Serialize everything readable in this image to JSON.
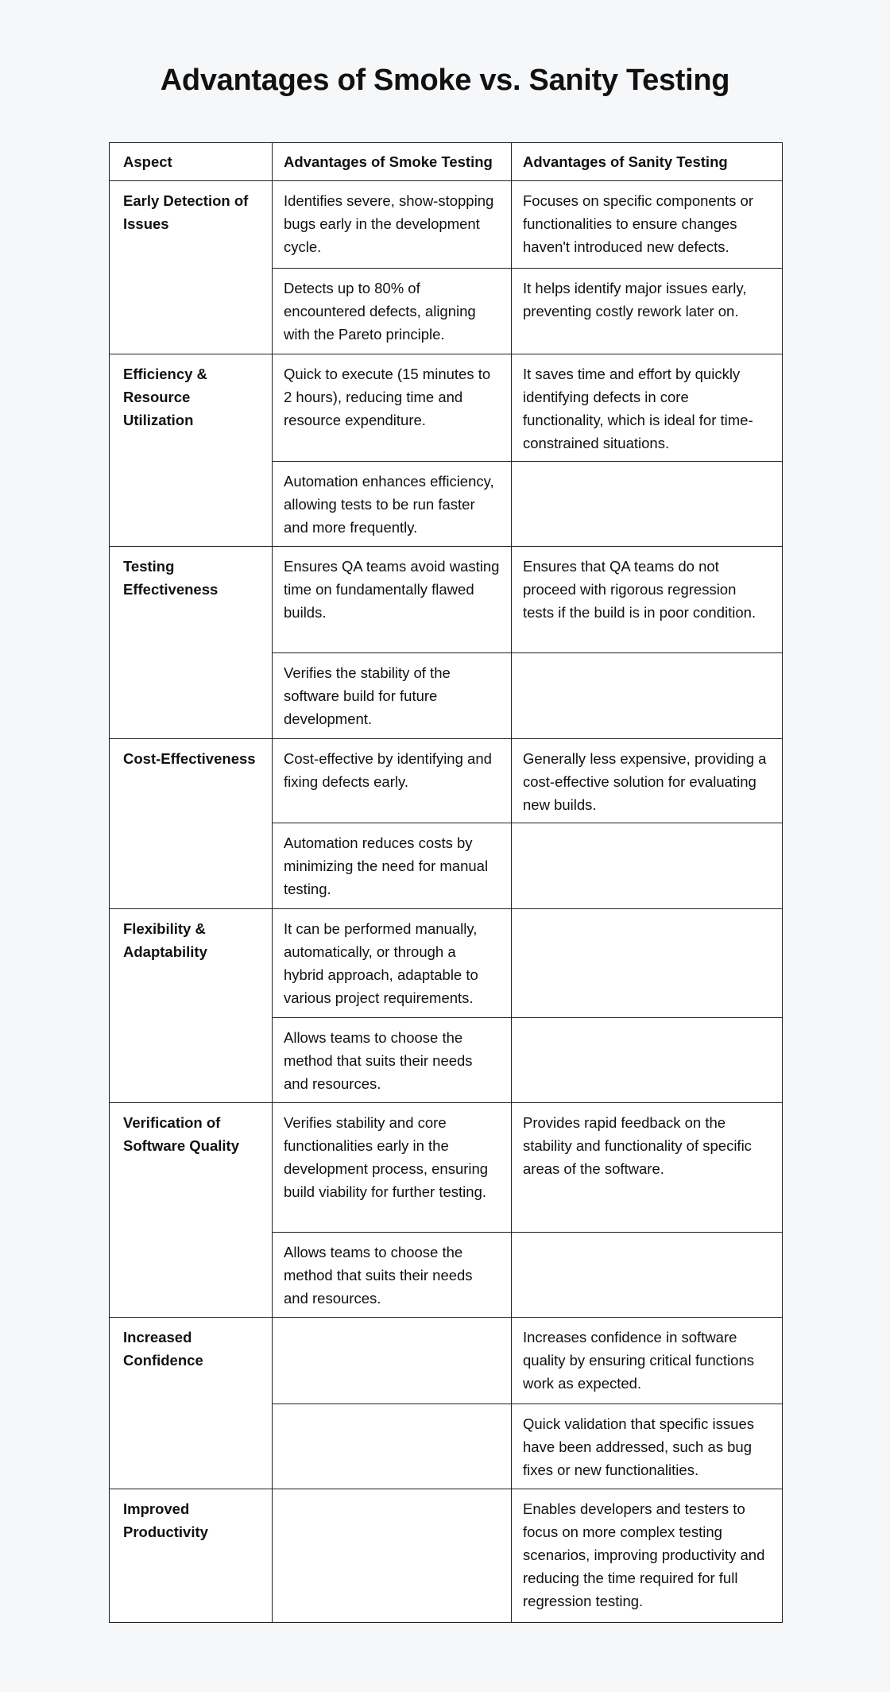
{
  "title": "Advantages of Smoke vs. Sanity Testing",
  "table": {
    "headers": [
      "Aspect",
      "Advantages of Smoke Testing",
      "Advantages of Sanity Testing"
    ],
    "groups": [
      {
        "aspect": "Early Detection of Issues",
        "rows": [
          {
            "smoke": "Identifies severe, show-stopping bugs early in the development cycle.",
            "sanity": "Focuses on specific components or functionalities to ensure changes haven't introduced new defects."
          },
          {
            "smoke": "Detects up to 80% of encountered defects, aligning with the Pareto principle.",
            "sanity": "It helps identify major issues early, preventing costly rework later on."
          }
        ]
      },
      {
        "aspect": "Efficiency & Resource Utilization",
        "rows": [
          {
            "smoke": "Quick to execute (15 minutes to 2 hours), reducing time and resource expenditure.",
            "sanity": "It saves time and effort by quickly identifying defects in core functionality, which is ideal for time-constrained situations."
          },
          {
            "smoke": "Automation enhances efficiency, allowing tests to be run faster and more frequently.",
            "sanity": ""
          }
        ]
      },
      {
        "aspect": "Testing Effectiveness",
        "rows": [
          {
            "smoke": "Ensures QA teams avoid wasting time on fundamentally flawed builds.",
            "sanity": "Ensures that QA teams do not proceed with rigorous regression tests if the build is in poor condition."
          },
          {
            "smoke": "Verifies the stability of the software build for future development.",
            "sanity": ""
          }
        ]
      },
      {
        "aspect": "Cost-Effectiveness",
        "rows": [
          {
            "smoke": "Cost-effective by identifying and fixing defects early.",
            "sanity": "Generally less expensive, providing a cost-effective solution for evaluating new builds."
          },
          {
            "smoke": "Automation reduces costs by minimizing the need for manual testing.",
            "sanity": ""
          }
        ]
      },
      {
        "aspect": "Flexibility & Adaptability",
        "rows": [
          {
            "smoke": "It can be performed manually, automatically, or through a hybrid approach, adaptable to various project requirements.",
            "sanity": ""
          },
          {
            "smoke": "Allows teams to choose the method that suits their needs and resources.",
            "sanity": ""
          }
        ]
      },
      {
        "aspect": "Verification of Software Quality",
        "rows": [
          {
            "smoke": "Verifies stability and core functionalities early in the development process, ensuring build viability for further testing.",
            "sanity": "Provides rapid feedback on the stability and functionality of specific areas of the software."
          },
          {
            "smoke": "Allows teams to choose the method that suits their needs and resources.",
            "sanity": ""
          }
        ]
      },
      {
        "aspect": "Increased Confidence",
        "rows": [
          {
            "smoke": "",
            "sanity": "Increases confidence in software quality by ensuring critical functions work as expected."
          },
          {
            "smoke": "",
            "sanity": "Quick validation that specific issues have been addressed, such as bug fixes or new functionalities."
          }
        ]
      },
      {
        "aspect": "Improved Productivity",
        "rows": [
          {
            "smoke": "",
            "sanity": "Enables developers and testers to focus on more complex testing scenarios, improving productivity and reducing the time required for full regression testing."
          }
        ]
      }
    ]
  }
}
